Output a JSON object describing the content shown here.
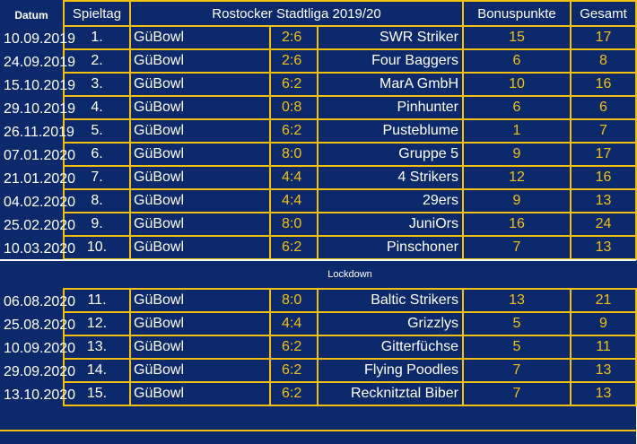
{
  "header": {
    "date_label": "Datum",
    "spieltag_label": "Spieltag",
    "title": "Rostocker Stadtliga 2019/20",
    "bonus_label": "Bonuspunkte",
    "total_label": "Gesamt"
  },
  "divider": {
    "label": "Lockdown"
  },
  "colors": {
    "background": "#0c2a6b",
    "border": "#f3c012",
    "date_text": "#e01818",
    "score_text": "#f3c012"
  },
  "rows_before": [
    {
      "date": "10.09.2019",
      "day": "1.",
      "home": "GüBowl",
      "score": "2:6",
      "opponent": "SWR Striker",
      "bonus": "15",
      "total": "17"
    },
    {
      "date": "24.09.2019",
      "day": "2.",
      "home": "GüBowl",
      "score": "2:6",
      "opponent": "Four Baggers",
      "bonus": "6",
      "total": "8"
    },
    {
      "date": "15.10.2019",
      "day": "3.",
      "home": "GüBowl",
      "score": "6:2",
      "opponent": "MarA  GmbH",
      "bonus": "10",
      "total": "16"
    },
    {
      "date": "29.10.2019",
      "day": "4.",
      "home": "GüBowl",
      "score": "0:8",
      "opponent": "Pinhunter",
      "bonus": "6",
      "total": "6"
    },
    {
      "date": "26.11.2019",
      "day": "5.",
      "home": "GüBowl",
      "score": "6:2",
      "opponent": "Pusteblume",
      "bonus": "1",
      "total": "7"
    },
    {
      "date": "07.01.2020",
      "day": "6.",
      "home": "GüBowl",
      "score": "8:0",
      "opponent": "Gruppe 5",
      "bonus": "9",
      "total": "17"
    },
    {
      "date": "21.01.2020",
      "day": "7.",
      "home": "GüBowl",
      "score": "4:4",
      "opponent": "4 Strikers",
      "bonus": "12",
      "total": "16"
    },
    {
      "date": "04.02.2020",
      "day": "8.",
      "home": "GüBowl",
      "score": "4:4",
      "opponent": "29ers",
      "bonus": "9",
      "total": "13"
    },
    {
      "date": "25.02.2020",
      "day": "9.",
      "home": "GüBowl",
      "score": "8:0",
      "opponent": "JuniOrs",
      "bonus": "16",
      "total": "24"
    },
    {
      "date": "10.03.2020",
      "day": "10.",
      "home": "GüBowl",
      "score": "6:2",
      "opponent": "Pinschoner",
      "bonus": "7",
      "total": "13"
    }
  ],
  "rows_after": [
    {
      "date": "06.08.2020",
      "day": "11.",
      "home": "GüBowl",
      "score": "8:0",
      "opponent": "Baltic Strikers",
      "bonus": "13",
      "total": "21"
    },
    {
      "date": "25.08.2020",
      "day": "12.",
      "home": "GüBowl",
      "score": "4:4",
      "opponent": "Grizzlys",
      "bonus": "5",
      "total": "9"
    },
    {
      "date": "10.09.2020",
      "day": "13.",
      "home": "GüBowl",
      "score": "6:2",
      "opponent": "Gitterfüchse",
      "bonus": "5",
      "total": "11"
    },
    {
      "date": "29.09.2020",
      "day": "14.",
      "home": "GüBowl",
      "score": "6:2",
      "opponent": "Flying Poodles",
      "bonus": "7",
      "total": "13"
    },
    {
      "date": "13.10.2020",
      "day": "15.",
      "home": "GüBowl",
      "score": "6:2",
      "opponent": "Recknitztal Biber",
      "bonus": "7",
      "total": "13"
    }
  ]
}
